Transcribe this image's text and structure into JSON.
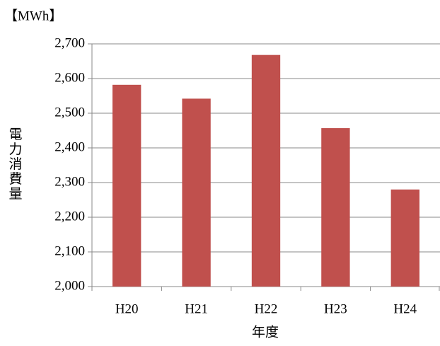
{
  "chart_data": {
    "type": "bar",
    "unit_label": "【MWh】",
    "y_label": "電力消費量",
    "x_label": "年度",
    "categories": [
      "H20",
      "H21",
      "H22",
      "H23",
      "H24"
    ],
    "values": [
      2582,
      2542,
      2668,
      2457,
      2280
    ],
    "color": "#c0504d",
    "ylim": [
      2000,
      2700
    ],
    "yticks": [
      {
        "value": 2000,
        "label": "2,000"
      },
      {
        "value": 2100,
        "label": "2,100"
      },
      {
        "value": 2200,
        "label": "2,200"
      },
      {
        "value": 2300,
        "label": "2,300"
      },
      {
        "value": 2400,
        "label": "2,400"
      },
      {
        "value": 2500,
        "label": "2,500"
      },
      {
        "value": 2600,
        "label": "2,600"
      },
      {
        "value": 2700,
        "label": "2,700"
      }
    ],
    "grid": true
  }
}
